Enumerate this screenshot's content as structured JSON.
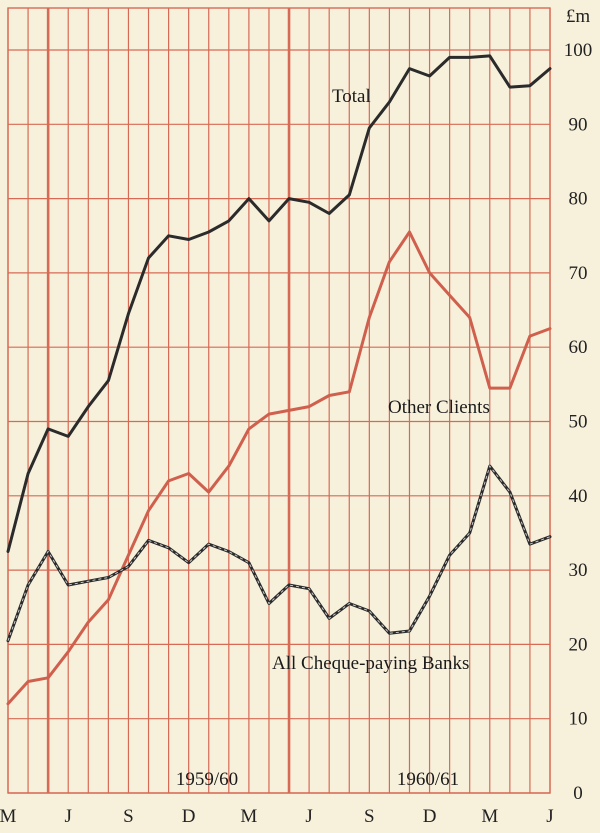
{
  "chart_data": {
    "type": "line",
    "unit_label": "£m",
    "x_tick_labels": [
      "M",
      "J",
      "S",
      "D",
      "M",
      "J",
      "S",
      "D",
      "M",
      "J"
    ],
    "period_labels": [
      "1959/60",
      "1960/61"
    ],
    "ylim": [
      0,
      100
    ],
    "y_ticks": [
      0,
      10,
      20,
      30,
      40,
      50,
      60,
      70,
      80,
      90,
      100
    ],
    "grid": true,
    "colors": {
      "grid": "#d66a55",
      "total": "#2b2b2b",
      "other": "#d0604e",
      "banks": "#2b2b2b",
      "background": "#f7f1dc"
    },
    "series": [
      {
        "name": "Total",
        "values": [
          32.5,
          43,
          49,
          48,
          52,
          55.5,
          64.5,
          72,
          75,
          74.5,
          75.5,
          77,
          80,
          77,
          80,
          79.5,
          78,
          80.5,
          89.5,
          93,
          97.5,
          96.5,
          99,
          99,
          99.2,
          95,
          95.2,
          97.5
        ]
      },
      {
        "name": "Other Clients",
        "values": [
          12,
          15,
          15.5,
          19,
          23,
          26,
          32,
          38,
          42,
          43,
          40.5,
          44,
          49,
          51,
          51.5,
          52,
          53.5,
          54,
          64,
          71.5,
          75.5,
          70,
          67,
          64,
          54.5,
          54.5,
          61.5,
          62.5
        ]
      },
      {
        "name": "All Cheque-paying Banks",
        "values": [
          20.5,
          28,
          32.5,
          28,
          28.5,
          29,
          30.5,
          34,
          33,
          31,
          33.5,
          32.5,
          31,
          25.5,
          28,
          27.5,
          23.5,
          25.5,
          24.5,
          21.5,
          21.8,
          26.5,
          32,
          35,
          44,
          40.5,
          33.5,
          34.5
        ]
      }
    ]
  }
}
